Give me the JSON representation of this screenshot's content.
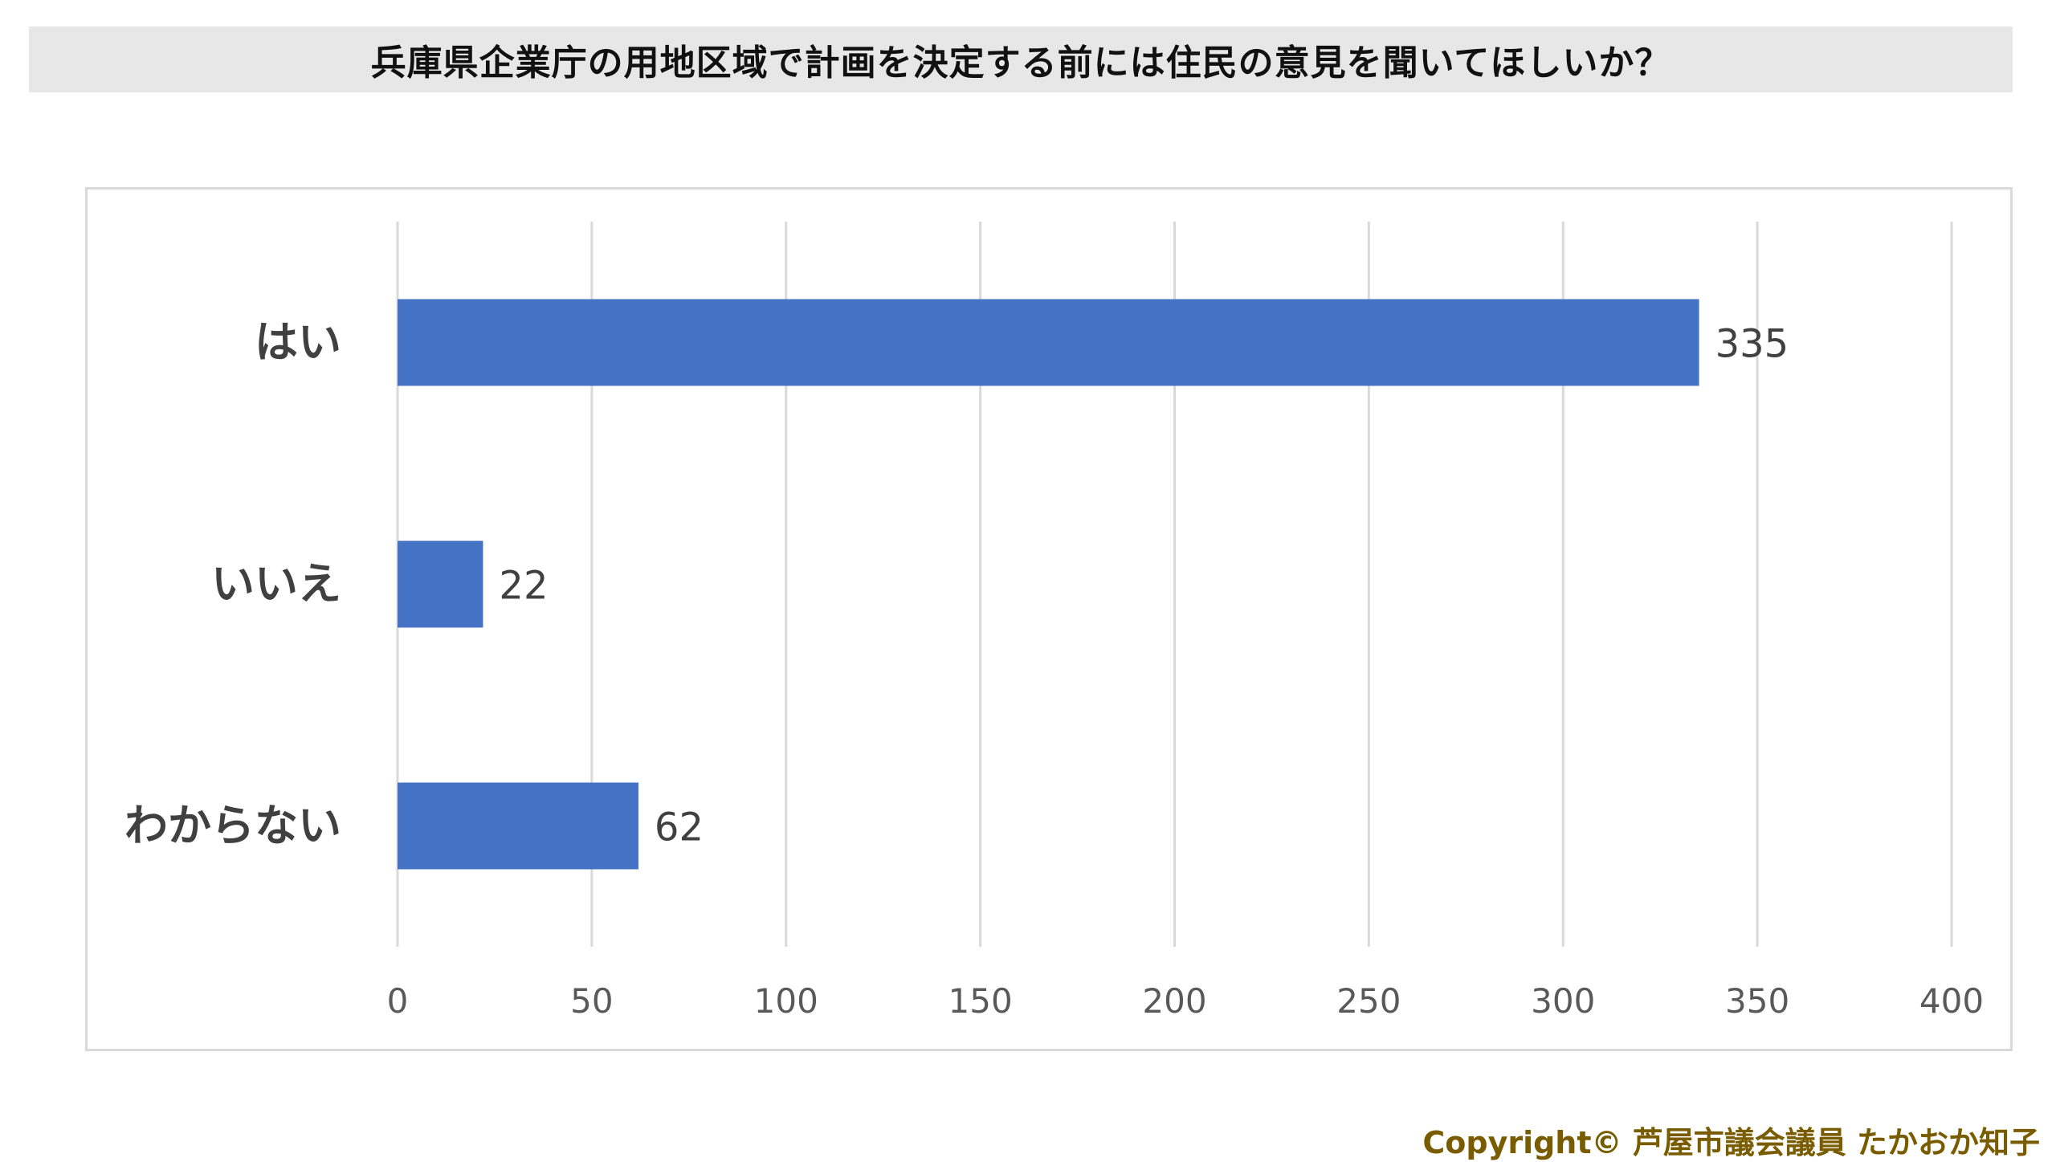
{
  "chart_data": {
    "type": "bar",
    "orientation": "horizontal",
    "title": "兵庫県企業庁の用地区域で計画を決定する前には住民の意見を聞いてほしいか？",
    "categories": [
      "はい",
      "いいえ",
      "わからない"
    ],
    "values": [
      335,
      22,
      62
    ],
    "xlim": [
      0,
      400
    ],
    "ticks": [
      0,
      50,
      100,
      150,
      200,
      250,
      300,
      350,
      400
    ],
    "grid": true,
    "bar_color": "#4472c4",
    "grid_color": "#d9d9d9",
    "data_labels": [
      "335",
      "22",
      "62"
    ]
  },
  "footer": {
    "copyright": "Copyright© 芦屋市議会議員 たかおか知子",
    "copyright_color": "#7a5c00"
  }
}
